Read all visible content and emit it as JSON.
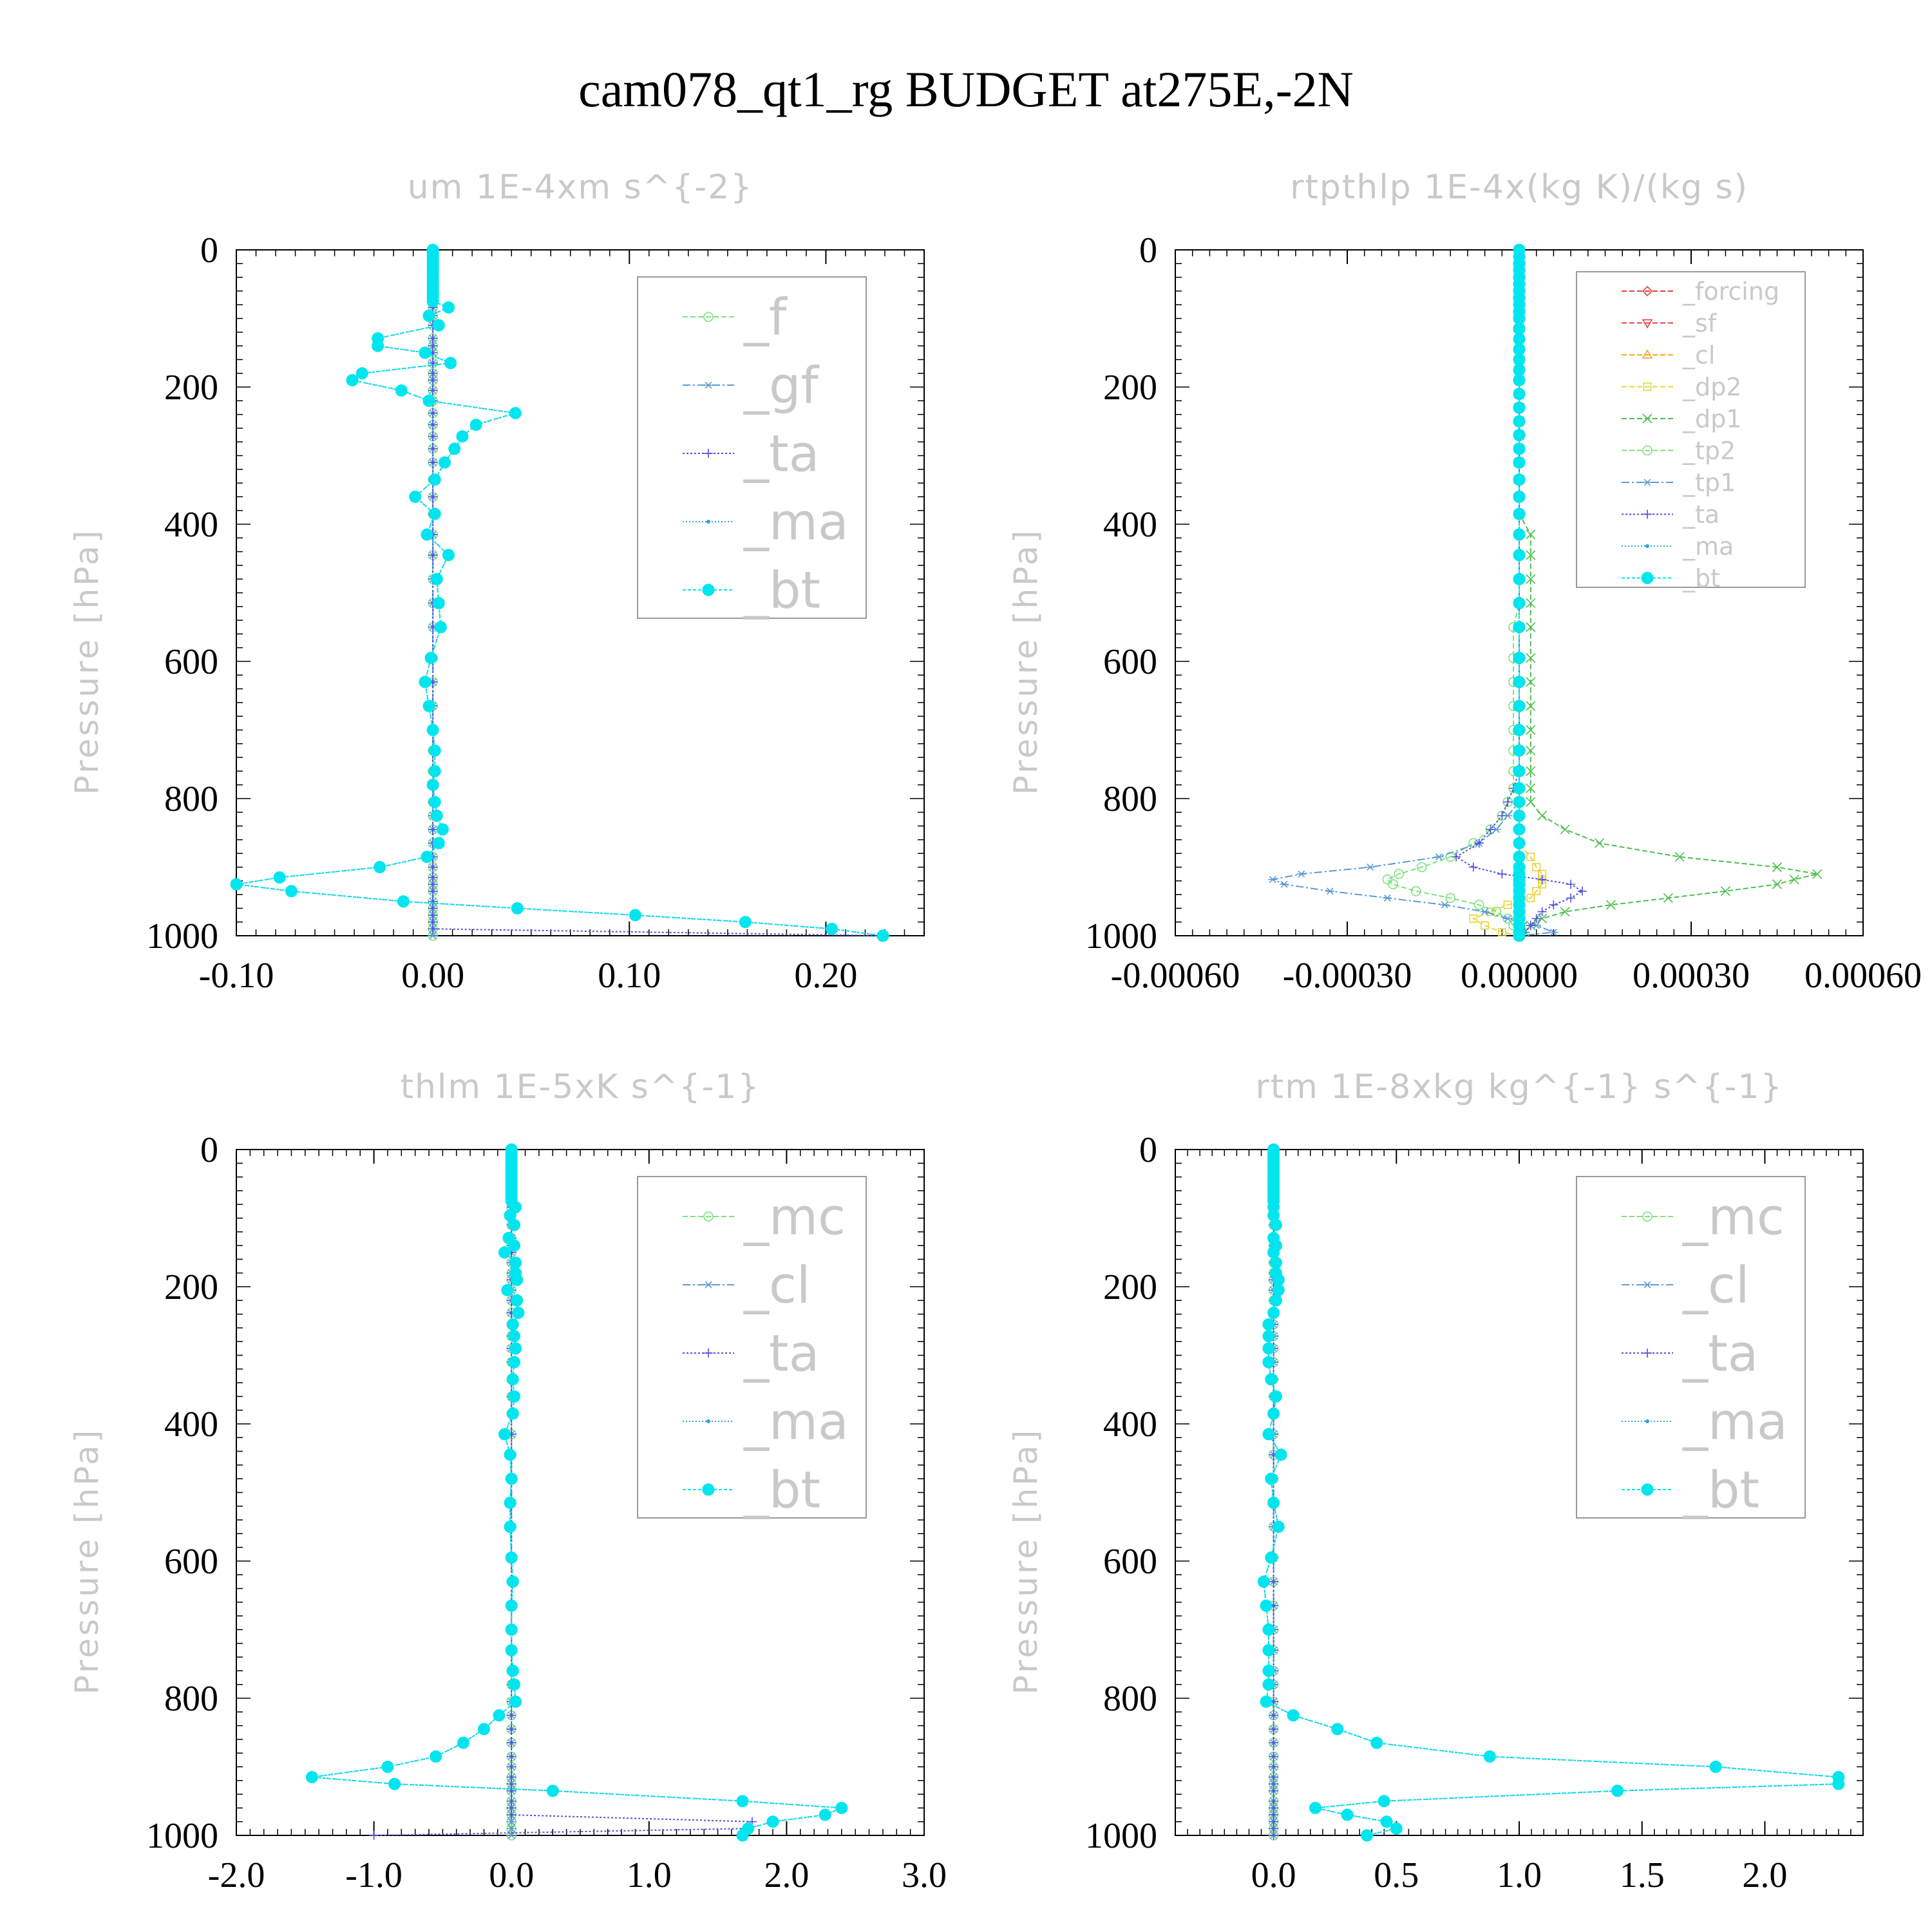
{
  "title": "cam078_qt1_rg  BUDGET at275E,-2N",
  "chart_data": [
    {
      "type": "line",
      "title": "um  1E-4xm s^{-2}",
      "ylabel": "Pressure [hPa]",
      "ylim": [
        1000,
        0
      ],
      "xlim": [
        -0.1,
        0.25
      ],
      "xticks": [
        -0.1,
        0.0,
        0.1,
        0.2
      ],
      "xtick_labels": [
        "-0.10",
        "0.00",
        "0.10",
        "0.20"
      ],
      "yticks": [
        0,
        200,
        400,
        600,
        800,
        1000
      ],
      "ytick_labels": [
        "0",
        "200",
        "400",
        "600",
        "800",
        "1000"
      ],
      "legend_position": "top-right",
      "legend_size": "large",
      "levels": [
        0,
        5,
        10,
        15,
        20,
        25,
        30,
        35,
        40,
        45,
        50,
        55,
        60,
        65,
        70,
        75,
        84,
        96,
        110,
        129,
        140,
        150,
        165,
        180,
        190,
        205,
        220,
        238,
        255,
        272,
        290,
        310,
        335,
        360,
        385,
        415,
        445,
        480,
        515,
        550,
        595,
        630,
        665,
        700,
        730,
        760,
        780,
        805,
        825,
        845,
        865,
        885,
        900,
        915,
        925,
        935,
        950,
        960,
        970,
        980,
        990,
        1000
      ],
      "series": [
        {
          "name": "_f",
          "color": "#7be37b",
          "marker": "circle",
          "dash": "8 4",
          "values": "zero"
        },
        {
          "name": "_gf",
          "color": "#5b9bd5",
          "marker": "asterisk",
          "dash": "12 4 3 4",
          "values": "zero"
        },
        {
          "name": "_ta",
          "color": "#5050e0",
          "marker": "plus",
          "dash": "3 3",
          "values": [
            0,
            0,
            0,
            0,
            0,
            0,
            0,
            0,
            0,
            0,
            0,
            0,
            0,
            0,
            0,
            0,
            0,
            0,
            0,
            0,
            0,
            0,
            0,
            0,
            0,
            0,
            0,
            0,
            0,
            0,
            0,
            0,
            0,
            0,
            0,
            0,
            0,
            0,
            0,
            0,
            0,
            0,
            0,
            0,
            0,
            0,
            0,
            0,
            0,
            0,
            0,
            0,
            0,
            0,
            0,
            0,
            0,
            0,
            0,
            0,
            0,
            0.23
          ]
        },
        {
          "name": "_ma",
          "color": "#2aa6d8",
          "marker": "dot",
          "dash": "2 3",
          "values": "copy:_bt"
        },
        {
          "name": "_bt",
          "color": "#00e5ee",
          "marker": "bigdot",
          "dash": "5 3",
          "values": [
            0,
            0,
            0,
            0,
            0,
            0,
            0,
            0,
            0,
            0,
            0,
            0,
            0,
            0,
            0,
            0,
            0.008,
            -0.002,
            0.003,
            -0.028,
            -0.028,
            -0.004,
            0.009,
            -0.036,
            -0.041,
            -0.016,
            -0.002,
            0.042,
            0.022,
            0.015,
            0.011,
            0.006,
            0.001,
            -0.009,
            0.001,
            -0.003,
            0.008,
            0.002,
            0.003,
            0.004,
            -0.001,
            -0.004,
            -0.002,
            0,
            0.001,
            0.001,
            0,
            0.001,
            0.002,
            0.005,
            0.003,
            -0.003,
            -0.027,
            -0.078,
            -0.1,
            -0.072,
            -0.015,
            0.043,
            0.103,
            0.159,
            0.203,
            0.229
          ]
        }
      ]
    },
    {
      "type": "line",
      "title": "rtpthlp  1E-4x(kg K)/(kg s)",
      "ylabel": "Pressure [hPa]",
      "ylim": [
        1000,
        0
      ],
      "xlim": [
        -0.0006,
        0.0006
      ],
      "xticks": [
        -0.0006,
        -0.0003,
        0.0,
        0.0003,
        0.0006
      ],
      "xtick_labels": [
        "-0.00060",
        "-0.00030",
        "0.00000",
        "0.00030",
        "0.00060"
      ],
      "yticks": [
        0,
        200,
        400,
        600,
        800,
        1000
      ],
      "ytick_labels": [
        "0",
        "200",
        "400",
        "600",
        "800",
        "1000"
      ],
      "legend_position": "top-right",
      "legend_size": "small",
      "levels": [
        0,
        10,
        20,
        30,
        40,
        50,
        60,
        70,
        80,
        90,
        100,
        115,
        130,
        145,
        160,
        175,
        190,
        210,
        230,
        250,
        270,
        290,
        310,
        335,
        360,
        385,
        415,
        445,
        480,
        515,
        550,
        595,
        630,
        665,
        700,
        730,
        760,
        785,
        805,
        825,
        845,
        865,
        885,
        900,
        910,
        918,
        925,
        935,
        945,
        955,
        965,
        975,
        985,
        995,
        1000
      ],
      "series": [
        {
          "name": "_forcing",
          "color": "#e04040",
          "marker": "diamond",
          "dash": "8 4",
          "values": "zero"
        },
        {
          "name": "_sf",
          "color": "#e04040",
          "marker": "triangle-down",
          "dash": "8 4",
          "values": "zero"
        },
        {
          "name": "_cl",
          "color": "#f5a623",
          "marker": "triangle-up",
          "dash": "8 4",
          "values": "zero"
        },
        {
          "name": "_dp2",
          "color": "#e8d23a",
          "marker": "square",
          "dash": "8 4",
          "values": [
            0,
            0,
            0,
            0,
            0,
            0,
            0,
            0,
            0,
            0,
            0,
            0,
            0,
            0,
            0,
            0,
            0,
            0,
            0,
            0,
            0,
            0,
            0,
            0,
            0,
            0,
            0,
            0,
            0,
            0,
            0,
            0,
            0,
            0,
            0,
            0,
            0,
            0,
            0,
            0,
            0,
            0,
            2e-05,
            3e-05,
            4e-05,
            4e-05,
            4e-05,
            3e-05,
            2e-05,
            -2e-05,
            -5e-05,
            -8e-05,
            -6e-05,
            -3e-05,
            0
          ]
        },
        {
          "name": "_dp1",
          "color": "#4cbf4c",
          "marker": "x",
          "dash": "8 4",
          "values": [
            0,
            0,
            0,
            0,
            0,
            0,
            0,
            0,
            0,
            0,
            0,
            0,
            0,
            0,
            0,
            0,
            0,
            0,
            0,
            0,
            0,
            0,
            0,
            0,
            0,
            0,
            2e-05,
            2e-05,
            2e-05,
            2e-05,
            2e-05,
            2e-05,
            2e-05,
            2e-05,
            2e-05,
            2e-05,
            2e-05,
            2e-05,
            2e-05,
            4e-05,
            8e-05,
            0.00014,
            0.00028,
            0.00045,
            0.00052,
            0.00048,
            0.00045,
            0.00036,
            0.00026,
            0.00016,
            8e-05,
            4e-05,
            2e-05,
            1e-05,
            0
          ]
        },
        {
          "name": "_tp2",
          "color": "#7be37b",
          "marker": "circle",
          "dash": "8 4",
          "values": [
            0,
            0,
            0,
            0,
            0,
            0,
            0,
            0,
            0,
            0,
            0,
            0,
            0,
            0,
            0,
            0,
            0,
            0,
            0,
            0,
            0,
            0,
            0,
            0,
            0,
            0,
            0,
            0,
            0,
            0,
            -1e-05,
            -1e-05,
            -1e-05,
            -1e-05,
            -1e-05,
            -1e-05,
            -1e-05,
            -1e-05,
            -2e-05,
            -3e-05,
            -5e-05,
            -8e-05,
            -0.00012,
            -0.00017,
            -0.00021,
            -0.00023,
            -0.00022,
            -0.00018,
            -0.00012,
            -7e-05,
            -4e-05,
            -2e-05,
            -1e-05,
            0,
            0
          ]
        },
        {
          "name": "_tp1",
          "color": "#5b9bd5",
          "marker": "asterisk",
          "dash": "12 4 3 4",
          "values": [
            0,
            0,
            0,
            0,
            0,
            0,
            0,
            0,
            0,
            0,
            0,
            0,
            0,
            0,
            0,
            0,
            0,
            0,
            0,
            0,
            0,
            0,
            0,
            0,
            0,
            0,
            0,
            0,
            0,
            0,
            0,
            0,
            0,
            0,
            0,
            0,
            0,
            0,
            0,
            -2e-05,
            -4e-05,
            -7e-05,
            -0.00014,
            -0.00026,
            -0.00038,
            -0.00043,
            -0.00041,
            -0.00033,
            -0.00023,
            -0.00013,
            -6e-05,
            -2e-05,
            3e-05,
            6e-05,
            0
          ]
        },
        {
          "name": "_ta",
          "color": "#5050e0",
          "marker": "plus",
          "dash": "3 3",
          "values": [
            0,
            0,
            0,
            0,
            0,
            0,
            0,
            0,
            0,
            0,
            0,
            0,
            0,
            0,
            0,
            0,
            0,
            0,
            0,
            0,
            0,
            0,
            0,
            0,
            0,
            0,
            0,
            0,
            0,
            0,
            0,
            0,
            0,
            0,
            0,
            0,
            0,
            -1e-05,
            -2e-05,
            -3e-05,
            -5e-05,
            -7e-05,
            -0.00011,
            -8e-05,
            -3e-05,
            4e-05,
            9e-05,
            0.00011,
            9e-05,
            6e-05,
            4e-05,
            3e-05,
            2e-05,
            1e-05,
            0
          ]
        },
        {
          "name": "_ma",
          "color": "#2aa6d8",
          "marker": "dot",
          "dash": "2 3",
          "values": "zero"
        },
        {
          "name": "_bt",
          "color": "#00e5ee",
          "marker": "bigdot",
          "dash": "5 3",
          "values": "zero"
        }
      ]
    },
    {
      "type": "line",
      "title": "thlm  1E-5xK s^{-1}",
      "ylabel": "Pressure [hPa]",
      "ylim": [
        1000,
        0
      ],
      "xlim": [
        -2.0,
        3.0
      ],
      "xticks": [
        -2.0,
        -1.0,
        0.0,
        1.0,
        2.0,
        3.0
      ],
      "xtick_labels": [
        "-2.0",
        "-1.0",
        "0.0",
        "1.0",
        "2.0",
        "3.0"
      ],
      "yticks": [
        0,
        200,
        400,
        600,
        800,
        1000
      ],
      "ytick_labels": [
        "0",
        "200",
        "400",
        "600",
        "800",
        "1000"
      ],
      "legend_position": "top-right",
      "legend_size": "large",
      "levels": [
        0,
        5,
        10,
        15,
        20,
        25,
        30,
        35,
        40,
        45,
        50,
        55,
        60,
        65,
        70,
        75,
        84,
        96,
        110,
        129,
        140,
        150,
        165,
        180,
        190,
        205,
        220,
        238,
        255,
        272,
        290,
        310,
        335,
        360,
        385,
        415,
        445,
        480,
        515,
        550,
        595,
        630,
        665,
        700,
        730,
        760,
        780,
        805,
        825,
        845,
        865,
        885,
        900,
        915,
        925,
        935,
        950,
        960,
        970,
        980,
        990,
        1000
      ],
      "series": [
        {
          "name": "_mc",
          "color": "#7be37b",
          "marker": "circle",
          "dash": "8 4",
          "values": "zero"
        },
        {
          "name": "_cl",
          "color": "#5b9bd5",
          "marker": "asterisk",
          "dash": "12 4 3 4",
          "values": "zero"
        },
        {
          "name": "_ta",
          "color": "#5050e0",
          "marker": "plus",
          "dash": "3 3",
          "values": [
            0,
            0,
            0,
            0,
            0,
            0,
            0,
            0,
            0,
            0,
            0,
            0,
            0,
            0,
            0,
            0,
            0,
            0,
            0,
            0,
            0,
            0,
            0,
            0,
            0,
            0,
            0,
            0,
            0,
            0,
            0,
            0,
            0,
            0,
            0,
            0,
            0,
            0,
            0,
            0,
            0,
            0,
            0,
            0,
            0,
            0,
            0,
            0,
            0,
            0,
            0,
            0,
            0,
            0,
            0,
            0,
            0,
            0,
            0,
            1.75,
            1.7,
            -1.0
          ]
        },
        {
          "name": "_ma",
          "color": "#2aa6d8",
          "marker": "dot",
          "dash": "2 3",
          "values": "copy:_bt"
        },
        {
          "name": "_bt",
          "color": "#00e5ee",
          "marker": "bigdot",
          "dash": "5 3",
          "values": [
            0,
            0,
            0,
            0,
            0,
            0,
            0,
            0,
            0,
            0,
            0,
            0,
            0,
            0,
            0,
            0,
            0.03,
            -0.01,
            0.02,
            -0.02,
            0.02,
            -0.05,
            0.03,
            0.03,
            0.04,
            -0.03,
            0.04,
            0.05,
            0.01,
            0.02,
            0.03,
            0.02,
            0.01,
            0.02,
            0.01,
            -0.05,
            -0.01,
            0,
            -0.01,
            -0.01,
            0,
            0.01,
            0,
            0,
            0,
            0.01,
            0.02,
            0.03,
            -0.09,
            -0.2,
            -0.35,
            -0.55,
            -0.9,
            -1.45,
            -0.85,
            0.3,
            1.68,
            2.4,
            2.28,
            1.9,
            1.72,
            1.68
          ]
        }
      ]
    },
    {
      "type": "line",
      "title": "rtm  1E-8xkg kg^{-1} s^{-1}",
      "ylabel": "Pressure [hPa]",
      "ylim": [
        1000,
        0
      ],
      "xlim": [
        -0.4,
        2.4
      ],
      "xticks": [
        0.0,
        0.5,
        1.0,
        1.5,
        2.0
      ],
      "xtick_labels": [
        "0.0",
        "0.5",
        "1.0",
        "1.5",
        "2.0"
      ],
      "yticks": [
        0,
        200,
        400,
        600,
        800,
        1000
      ],
      "ytick_labels": [
        "0",
        "200",
        "400",
        "600",
        "800",
        "1000"
      ],
      "legend_position": "top-right",
      "legend_size": "large",
      "levels": [
        0,
        5,
        10,
        15,
        20,
        25,
        30,
        35,
        40,
        45,
        50,
        55,
        60,
        65,
        70,
        75,
        84,
        96,
        110,
        129,
        140,
        150,
        165,
        180,
        190,
        205,
        220,
        238,
        255,
        272,
        290,
        310,
        335,
        360,
        385,
        415,
        445,
        480,
        515,
        550,
        595,
        630,
        665,
        700,
        730,
        760,
        780,
        805,
        825,
        845,
        865,
        885,
        900,
        915,
        925,
        935,
        950,
        960,
        970,
        980,
        990,
        1000
      ],
      "series": [
        {
          "name": "_mc",
          "color": "#7be37b",
          "marker": "circle",
          "dash": "8 4",
          "values": "zero"
        },
        {
          "name": "_cl",
          "color": "#5b9bd5",
          "marker": "asterisk",
          "dash": "12 4 3 4",
          "values": "zero"
        },
        {
          "name": "_ta",
          "color": "#5050e0",
          "marker": "plus",
          "dash": "3 3",
          "values": "zero"
        },
        {
          "name": "_ma",
          "color": "#2aa6d8",
          "marker": "dot",
          "dash": "2 3",
          "values": "copy:_bt"
        },
        {
          "name": "_bt",
          "color": "#00e5ee",
          "marker": "bigdot",
          "dash": "5 3",
          "values": [
            0,
            0,
            0,
            0,
            0,
            0,
            0,
            0,
            0,
            0,
            0,
            0,
            0,
            0,
            0,
            0,
            0,
            0,
            0.01,
            0,
            0.01,
            0,
            0.01,
            0.01,
            0.02,
            0.02,
            0.01,
            0,
            -0.02,
            -0.02,
            -0.02,
            -0.02,
            -0.01,
            0.01,
            0,
            -0.02,
            0.03,
            -0.01,
            0,
            0.02,
            -0.01,
            -0.04,
            -0.03,
            -0.02,
            -0.02,
            -0.02,
            -0.02,
            -0.03,
            0.08,
            0.26,
            0.42,
            0.88,
            1.8,
            2.3,
            2.3,
            1.4,
            0.45,
            0.17,
            0.3,
            0.46,
            0.5,
            0.38
          ]
        }
      ]
    }
  ]
}
